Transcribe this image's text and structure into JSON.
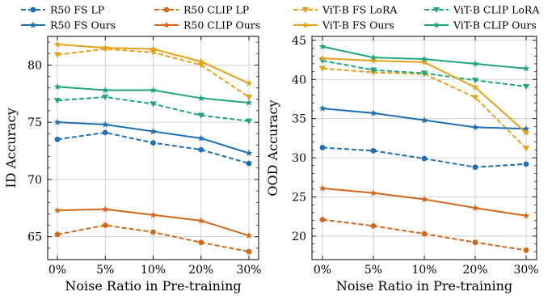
{
  "chart_data": [
    {
      "type": "line",
      "panel": "left",
      "categories": [
        "0%",
        "5%",
        "10%",
        "20%",
        "30%"
      ],
      "xlabel": "Noise Ratio in Pre-training",
      "ylabel": "ID Accuracy",
      "ylim": [
        63,
        82.5
      ],
      "yticks": [
        65,
        70,
        75,
        80
      ],
      "grid": true,
      "series": [
        {
          "name": "R50 FS LP",
          "values": [
            73.5,
            74.1,
            73.2,
            72.6,
            71.4
          ],
          "color": "#1f6fb4",
          "dash": "dashed",
          "marker": "circle"
        },
        {
          "name": "R50 CLIP LP",
          "values": [
            65.2,
            66.0,
            65.4,
            64.5,
            63.7
          ],
          "color": "#d4671a",
          "dash": "dashed",
          "marker": "circle"
        },
        {
          "name": "ViT-B FS LoRA",
          "values": [
            80.9,
            81.4,
            81.1,
            80.0,
            77.2
          ],
          "color": "#e3a21a",
          "dash": "dashed",
          "marker": "triangle"
        },
        {
          "name": "ViT-B CLIP LoRA",
          "values": [
            76.9,
            77.2,
            76.6,
            75.6,
            75.1
          ],
          "color": "#1fa67a",
          "dash": "dashed",
          "marker": "triangle"
        },
        {
          "name": "R50 FS Ours",
          "values": [
            75.0,
            74.8,
            74.2,
            73.6,
            72.3
          ],
          "color": "#1f6fb4",
          "dash": "solid",
          "marker": "star"
        },
        {
          "name": "R50 CLIP Ours",
          "values": [
            67.3,
            67.4,
            66.9,
            66.4,
            65.1
          ],
          "color": "#d4671a",
          "dash": "solid",
          "marker": "star"
        },
        {
          "name": "ViT-B FS Ours",
          "values": [
            81.8,
            81.5,
            81.4,
            80.3,
            78.4
          ],
          "color": "#e3a21a",
          "dash": "solid",
          "marker": "star"
        },
        {
          "name": "ViT-B CLIP Ours",
          "values": [
            78.1,
            77.8,
            77.8,
            77.1,
            76.7
          ],
          "color": "#1fa67a",
          "dash": "solid",
          "marker": "star"
        }
      ]
    },
    {
      "type": "line",
      "panel": "right",
      "categories": [
        "0%",
        "5%",
        "10%",
        "20%",
        "30%"
      ],
      "xlabel": "Noise Ratio in Pre-training",
      "ylabel": "OOD Accuracy",
      "ylim": [
        17,
        45.5
      ],
      "yticks": [
        20,
        25,
        30,
        35,
        40,
        45
      ],
      "grid": true,
      "series": [
        {
          "name": "R50 FS LP",
          "values": [
            31.3,
            30.9,
            29.9,
            28.8,
            29.2
          ],
          "color": "#1f6fb4",
          "dash": "dashed",
          "marker": "circle"
        },
        {
          "name": "R50 CLIP LP",
          "values": [
            22.1,
            21.3,
            20.3,
            19.2,
            18.2
          ],
          "color": "#d4671a",
          "dash": "dashed",
          "marker": "circle"
        },
        {
          "name": "ViT-B FS LoRA",
          "values": [
            41.4,
            40.9,
            40.7,
            37.7,
            31.2
          ],
          "color": "#e3a21a",
          "dash": "dashed",
          "marker": "triangle"
        },
        {
          "name": "ViT-B CLIP LoRA",
          "values": [
            42.4,
            41.2,
            40.8,
            39.9,
            39.1
          ],
          "color": "#1fa67a",
          "dash": "dashed",
          "marker": "triangle"
        },
        {
          "name": "R50 FS Ours",
          "values": [
            36.3,
            35.7,
            34.8,
            33.9,
            33.7
          ],
          "color": "#1f6fb4",
          "dash": "solid",
          "marker": "star"
        },
        {
          "name": "R50 CLIP Ours",
          "values": [
            26.1,
            25.5,
            24.7,
            23.6,
            22.6
          ],
          "color": "#d4671a",
          "dash": "solid",
          "marker": "star"
        },
        {
          "name": "ViT-B FS Ours",
          "values": [
            42.7,
            42.4,
            42.2,
            39.0,
            33.2
          ],
          "color": "#e3a21a",
          "dash": "solid",
          "marker": "star"
        },
        {
          "name": "ViT-B CLIP Ours",
          "values": [
            44.2,
            42.8,
            42.6,
            42.0,
            41.4
          ],
          "color": "#1fa67a",
          "dash": "solid",
          "marker": "star"
        }
      ]
    }
  ],
  "legend": {
    "placement": "top",
    "entries": [
      {
        "label": "R50 FS LP",
        "color": "#1f6fb4",
        "dash": "dashed",
        "marker": "circle"
      },
      {
        "label": "R50 CLIP LP",
        "color": "#d4671a",
        "dash": "dashed",
        "marker": "circle"
      },
      {
        "label": "ViT-B FS LoRA",
        "color": "#e3a21a",
        "dash": "dashed",
        "marker": "triangle"
      },
      {
        "label": "ViT-B CLIP LoRA",
        "color": "#1fa67a",
        "dash": "dashed",
        "marker": "triangle"
      },
      {
        "label": "R50 FS Ours",
        "color": "#1f6fb4",
        "dash": "solid",
        "marker": "star"
      },
      {
        "label": "R50 CLIP Ours",
        "color": "#d4671a",
        "dash": "solid",
        "marker": "star"
      },
      {
        "label": "ViT-B FS Ours",
        "color": "#e3a21a",
        "dash": "solid",
        "marker": "star"
      },
      {
        "label": "ViT-B CLIP Ours",
        "color": "#1fa67a",
        "dash": "solid",
        "marker": "star"
      }
    ]
  }
}
